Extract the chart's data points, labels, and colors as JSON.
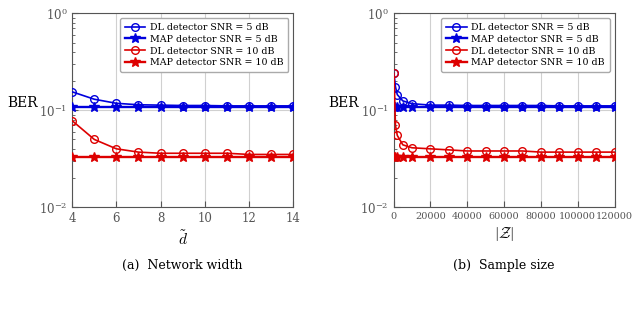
{
  "left_x": [
    4,
    5,
    6,
    7,
    8,
    9,
    10,
    11,
    12,
    13,
    14
  ],
  "left_dl_snr5": [
    0.155,
    0.13,
    0.118,
    0.114,
    0.113,
    0.112,
    0.112,
    0.111,
    0.111,
    0.111,
    0.111
  ],
  "left_map_snr5": [
    0.108,
    0.108,
    0.108,
    0.108,
    0.108,
    0.108,
    0.108,
    0.108,
    0.108,
    0.108,
    0.108
  ],
  "left_dl_snr10": [
    0.078,
    0.05,
    0.04,
    0.037,
    0.036,
    0.036,
    0.036,
    0.036,
    0.035,
    0.035,
    0.035
  ],
  "left_map_snr10": [
    0.033,
    0.033,
    0.033,
    0.033,
    0.033,
    0.033,
    0.033,
    0.033,
    0.033,
    0.033,
    0.033
  ],
  "right_x": [
    200,
    1000,
    2000,
    5000,
    10000,
    20000,
    30000,
    40000,
    50000,
    60000,
    70000,
    80000,
    90000,
    100000,
    110000,
    120000
  ],
  "right_dl_snr5": [
    0.24,
    0.175,
    0.145,
    0.125,
    0.117,
    0.113,
    0.113,
    0.112,
    0.112,
    0.112,
    0.112,
    0.112,
    0.111,
    0.111,
    0.111,
    0.111
  ],
  "right_map_snr5": [
    0.108,
    0.108,
    0.108,
    0.108,
    0.108,
    0.108,
    0.108,
    0.108,
    0.108,
    0.108,
    0.108,
    0.108,
    0.108,
    0.108,
    0.108,
    0.108
  ],
  "right_dl_snr10": [
    0.24,
    0.07,
    0.055,
    0.044,
    0.041,
    0.04,
    0.039,
    0.038,
    0.038,
    0.038,
    0.038,
    0.037,
    0.037,
    0.037,
    0.037,
    0.037
  ],
  "right_map_snr10": [
    0.033,
    0.033,
    0.033,
    0.033,
    0.033,
    0.033,
    0.033,
    0.033,
    0.033,
    0.033,
    0.033,
    0.033,
    0.033,
    0.033,
    0.033,
    0.033
  ],
  "color_blue": "#0000dd",
  "color_red": "#dd0000",
  "xlabel_left": "$\\tilde{d}$",
  "xlabel_right": "$|\\mathcal{Z}|$",
  "ylabel": "BER",
  "title_left": "(a)  Network width",
  "title_right": "(b)  Sample size",
  "legend_labels": [
    "DL detector SNR = 5 dB",
    "MAP detector SNR = 5 dB",
    "DL detector SNR = 10 dB",
    "MAP detector SNR = 10 dB"
  ],
  "ylim": [
    0.01,
    1.0
  ],
  "xlim_left": [
    4,
    14
  ],
  "xticks_left": [
    4,
    6,
    8,
    10,
    12,
    14
  ],
  "xlim_right": [
    0,
    120000
  ],
  "xticks_right": [
    0,
    20000,
    40000,
    60000,
    80000,
    100000,
    120000
  ],
  "xticklabels_right": [
    "0",
    "20000",
    "40000",
    "60000",
    "80000",
    "100000",
    "120000"
  ],
  "grid_color": "#d0d0d0",
  "background_color": "#ffffff",
  "tick_color": "#555555",
  "spine_color": "#555555"
}
